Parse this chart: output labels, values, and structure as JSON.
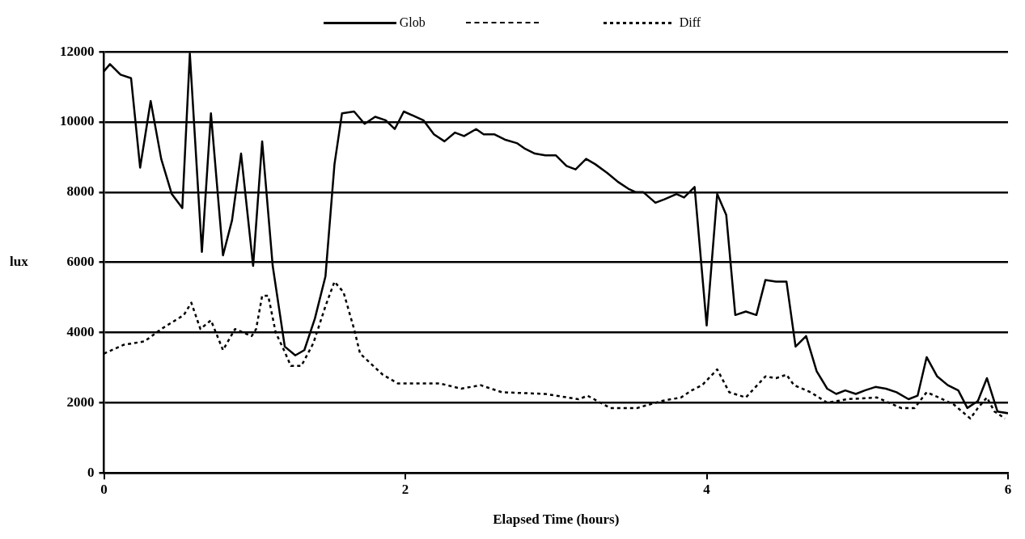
{
  "chart_data": {
    "type": "line",
    "xlabel": "Elapsed Time (hours)",
    "ylabel": "lux",
    "xlim": [
      0,
      6
    ],
    "xticks": [
      0,
      2,
      4,
      6
    ],
    "ylim": [
      0,
      12000
    ],
    "yticks": [
      0,
      2000,
      4000,
      6000,
      8000,
      10000,
      12000
    ],
    "grid": "y",
    "legend": "top",
    "marker": "none",
    "series": [
      {
        "name": "Glob",
        "color": "#000000",
        "line_style": "solid",
        "x": [
          0,
          0.04,
          0.11,
          0.18,
          0.24,
          0.31,
          0.38,
          0.45,
          0.52,
          0.57,
          0.65,
          0.71,
          0.79,
          0.85,
          0.91,
          0.99,
          1.05,
          1.12,
          1.2,
          1.27,
          1.33,
          1.4,
          1.47,
          1.53,
          1.58,
          1.66,
          1.73,
          1.8,
          1.87,
          1.93,
          1.99,
          2.12,
          2.19,
          2.26,
          2.33,
          2.39,
          2.47,
          2.52,
          2.59,
          2.66,
          2.74,
          2.79,
          2.86,
          2.93,
          3,
          3.07,
          3.13,
          3.2,
          3.26,
          3.34,
          3.41,
          3.48,
          3.53,
          3.58,
          3.66,
          3.72,
          3.8,
          3.85,
          3.92,
          4,
          4.07,
          4.13,
          4.19,
          4.26,
          4.33,
          4.39,
          4.46,
          4.53,
          4.59,
          4.66,
          4.73,
          4.8,
          4.86,
          4.92,
          4.99,
          5.05,
          5.12,
          5.19,
          5.26,
          5.34,
          5.4,
          5.46,
          5.53,
          5.6,
          5.67,
          5.73,
          5.8,
          5.86,
          5.93,
          6
        ],
        "values": [
          11450,
          11650,
          11350,
          11250,
          8700,
          10600,
          8950,
          7950,
          7550,
          11950,
          6300,
          10250,
          6200,
          7200,
          9100,
          5900,
          9450,
          5900,
          3600,
          3350,
          3500,
          4400,
          5600,
          8800,
          10250,
          10300,
          9950,
          10150,
          10050,
          9800,
          10300,
          10050,
          9650,
          9450,
          9700,
          9600,
          9800,
          9650,
          9650,
          9500,
          9400,
          9250,
          9100,
          9050,
          9050,
          8750,
          8650,
          8950,
          8800,
          8550,
          8300,
          8100,
          8000,
          8000,
          7700,
          7800,
          7950,
          7850,
          8150,
          4200,
          7950,
          7350,
          4500,
          4600,
          4500,
          5500,
          5450,
          5450,
          3600,
          3900,
          2900,
          2400,
          2250,
          2350,
          2250,
          2350,
          2450,
          2400,
          2300,
          2100,
          2200,
          3300,
          2750,
          2500,
          2350,
          1850,
          2050,
          2700,
          1750,
          1700
        ]
      },
      {
        "name": "Diff",
        "color": "#000000",
        "line_style": "dotted",
        "x": [
          0,
          0.13,
          0.27,
          0.38,
          0.53,
          0.58,
          0.64,
          0.71,
          0.79,
          0.87,
          0.98,
          1.01,
          1.05,
          1.09,
          1.14,
          1.2,
          1.24,
          1.31,
          1.39,
          1.47,
          1.53,
          1.59,
          1.66,
          1.7,
          1.85,
          1.95,
          2.23,
          2.37,
          2.5,
          2.64,
          2.93,
          3.15,
          3.21,
          3.36,
          3.54,
          3.7,
          3.83,
          3.9,
          3.97,
          4.07,
          4.15,
          4.26,
          4.39,
          4.46,
          4.53,
          4.58,
          4.69,
          4.8,
          4.93,
          5.13,
          5.29,
          5.38,
          5.46,
          5.54,
          5.64,
          5.75,
          5.8,
          5.86,
          5.91,
          5.98
        ],
        "values": [
          3400,
          3650,
          3750,
          4100,
          4500,
          4850,
          4100,
          4350,
          3500,
          4100,
          3900,
          4100,
          5050,
          5050,
          4000,
          3450,
          3050,
          3050,
          3700,
          4750,
          5450,
          5150,
          4100,
          3400,
          2800,
          2550,
          2550,
          2400,
          2500,
          2300,
          2250,
          2100,
          2200,
          1850,
          1850,
          2050,
          2150,
          2350,
          2500,
          2950,
          2300,
          2150,
          2750,
          2700,
          2800,
          2500,
          2300,
          2000,
          2100,
          2150,
          1850,
          1850,
          2300,
          2150,
          1950,
          1550,
          1850,
          2150,
          1750,
          1550
        ]
      }
    ]
  }
}
